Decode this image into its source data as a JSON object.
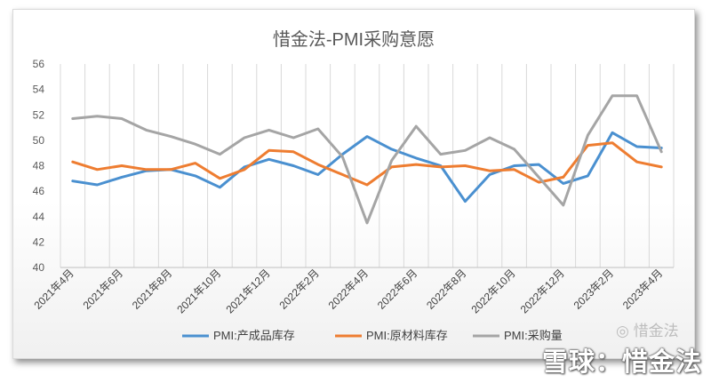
{
  "chart_data": {
    "type": "line",
    "title": "惜金法-PMI采购意愿",
    "xlabel": "",
    "ylabel": "",
    "ylim": [
      40,
      56
    ],
    "yticks": [
      40,
      42,
      44,
      46,
      48,
      50,
      52,
      54,
      56
    ],
    "grid": "vertical",
    "legend_position": "bottom",
    "categories": [
      "2021年4月",
      "2021年5月",
      "2021年6月",
      "2021年7月",
      "2021年8月",
      "2021年9月",
      "2021年10月",
      "2021年11月",
      "2021年12月",
      "2022年1月",
      "2022年2月",
      "2022年3月",
      "2022年4月",
      "2022年5月",
      "2022年6月",
      "2022年7月",
      "2022年8月",
      "2022年9月",
      "2022年10月",
      "2022年11月",
      "2022年12月",
      "2023年1月",
      "2023年2月",
      "2023年3月",
      "2023年4月"
    ],
    "x_tick_labels": [
      "2021年4月",
      "2021年6月",
      "2021年8月",
      "2021年10月",
      "2021年12月",
      "2022年2月",
      "2022年4月",
      "2022年6月",
      "2022年8月",
      "2022年10月",
      "2022年12月",
      "2023年2月",
      "2023年4月"
    ],
    "series": [
      {
        "name": "PMI:产成品库存",
        "color": "#4a90d0",
        "values": [
          46.8,
          46.5,
          47.1,
          47.6,
          47.7,
          47.2,
          46.3,
          47.9,
          48.5,
          48.0,
          47.3,
          48.9,
          50.3,
          49.3,
          48.6,
          48.0,
          45.2,
          47.3,
          48.0,
          48.1,
          46.6,
          47.2,
          50.6,
          49.5,
          49.4
        ]
      },
      {
        "name": "PMI:原材料库存",
        "color": "#ee7d31",
        "values": [
          48.3,
          47.7,
          48.0,
          47.7,
          47.7,
          48.2,
          47.0,
          47.7,
          49.2,
          49.1,
          48.1,
          47.3,
          46.5,
          47.9,
          48.1,
          47.9,
          48.0,
          47.6,
          47.7,
          46.7,
          47.1,
          49.6,
          49.8,
          48.3,
          47.9
        ]
      },
      {
        "name": "PMI:采购量",
        "color": "#a5a5a5",
        "values": [
          51.7,
          51.9,
          51.7,
          50.8,
          50.3,
          49.7,
          48.9,
          50.2,
          50.8,
          50.2,
          50.9,
          48.7,
          43.5,
          48.4,
          51.1,
          48.9,
          49.2,
          50.2,
          49.3,
          47.1,
          44.9,
          50.4,
          53.5,
          53.5,
          49.1
        ]
      }
    ]
  },
  "watermark": {
    "text": "雪球：惜金法",
    "wechat": "惜金法"
  }
}
